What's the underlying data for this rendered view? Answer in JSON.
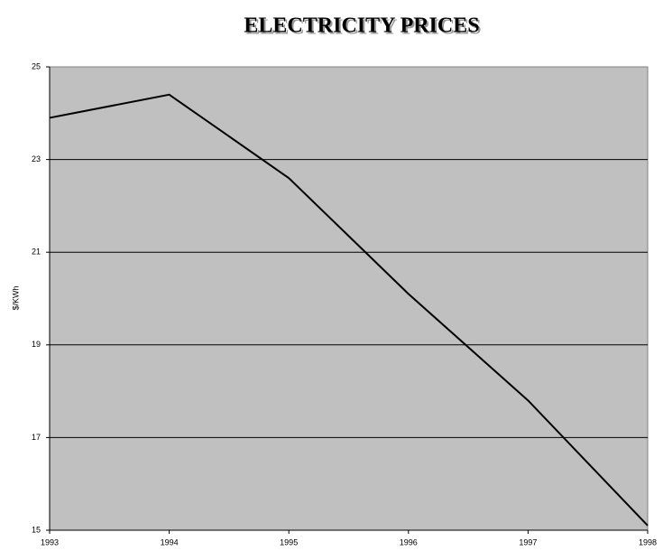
{
  "chart_data": {
    "type": "line",
    "title": "ELECTRICITY PRICES",
    "y_label": "$/KWh",
    "x": [
      1993,
      1994,
      1995,
      1996,
      1997,
      1998
    ],
    "series": [
      {
        "name": null,
        "color": "#000000",
        "values": [
          23.9,
          24.4,
          22.6,
          20.1,
          17.8,
          15.1
        ]
      }
    ],
    "xlim": [
      1993,
      1998
    ],
    "xticks": [
      1993,
      1994,
      1995,
      1996,
      1997,
      1998
    ],
    "ylim": [
      15,
      25
    ],
    "yticks": [
      15,
      17,
      19,
      21,
      23,
      25
    ],
    "grid": true,
    "plot_background": "#c0c0c0"
  }
}
